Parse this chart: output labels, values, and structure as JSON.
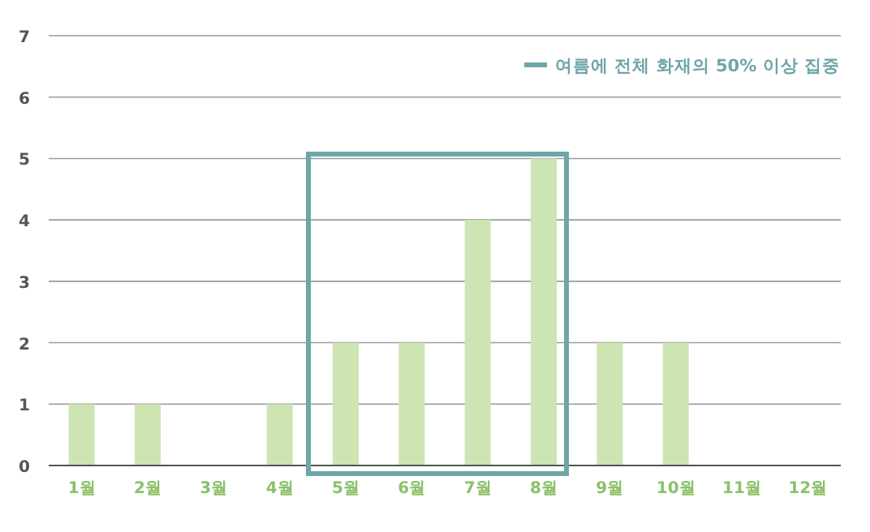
{
  "chart_data": {
    "type": "bar",
    "categories": [
      "1월",
      "2월",
      "3월",
      "4월",
      "5월",
      "6월",
      "7월",
      "8월",
      "9월",
      "10월",
      "11월",
      "12월"
    ],
    "values": [
      1,
      1,
      0,
      1,
      2,
      2,
      4,
      5,
      2,
      2,
      0,
      0
    ],
    "color": "#cde4b3",
    "ylim": [
      0,
      7
    ],
    "yticks": [
      0,
      1,
      2,
      3,
      4,
      5,
      6,
      7
    ],
    "grid": "y",
    "annotations": [
      "여름에 전체 화재의 50% 이상 집중"
    ]
  }
}
